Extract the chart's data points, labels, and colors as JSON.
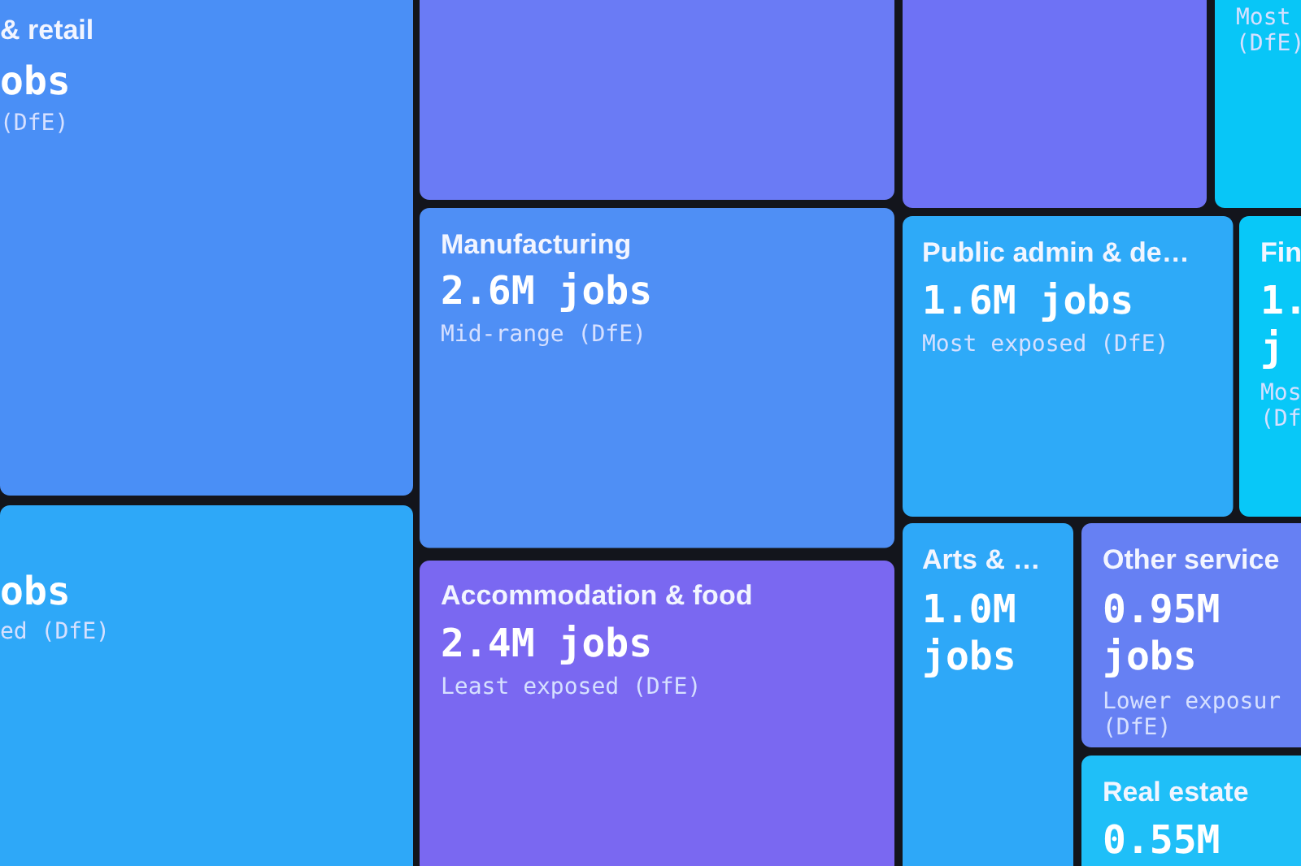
{
  "chart_data": {
    "type": "other",
    "categories": [
      "& retail",
      null,
      null,
      "Manufacturing",
      "Accommodation & food",
      null,
      null,
      "Public admin & de…",
      "Fin",
      "Arts & …",
      "Other service",
      "Real estate"
    ],
    "values": [
      null,
      null,
      null,
      2.6,
      2.4,
      null,
      null,
      1.6,
      null,
      1.0,
      0.95,
      0.55
    ],
    "value_labels": [
      "obs",
      "obs",
      null,
      "2.6M jobs",
      "2.4M jobs",
      null,
      null,
      "1.6M jobs",
      "1. j",
      "1.0M jobs",
      "0.95M jobs",
      "0.55M"
    ],
    "colors": [
      "#4a8ff6",
      "#2ea8f8",
      "#6a7bf5",
      "#4f8ff5",
      "#7a68f1",
      "#6e72f5",
      "#08c6f7",
      "#2eaaf8",
      "#08c8f8",
      "#2ea8f8",
      "#6680f3",
      "#1fbff8"
    ],
    "annotations": [
      "(DfE)",
      "ed (DfE)",
      "Mid-range (DfE)",
      "Least exposed (DfE)",
      "Most (DfE)",
      "Most exposed (DfE)",
      "Mos (Df",
      "Lower exposur (DfE)"
    ]
  }
}
